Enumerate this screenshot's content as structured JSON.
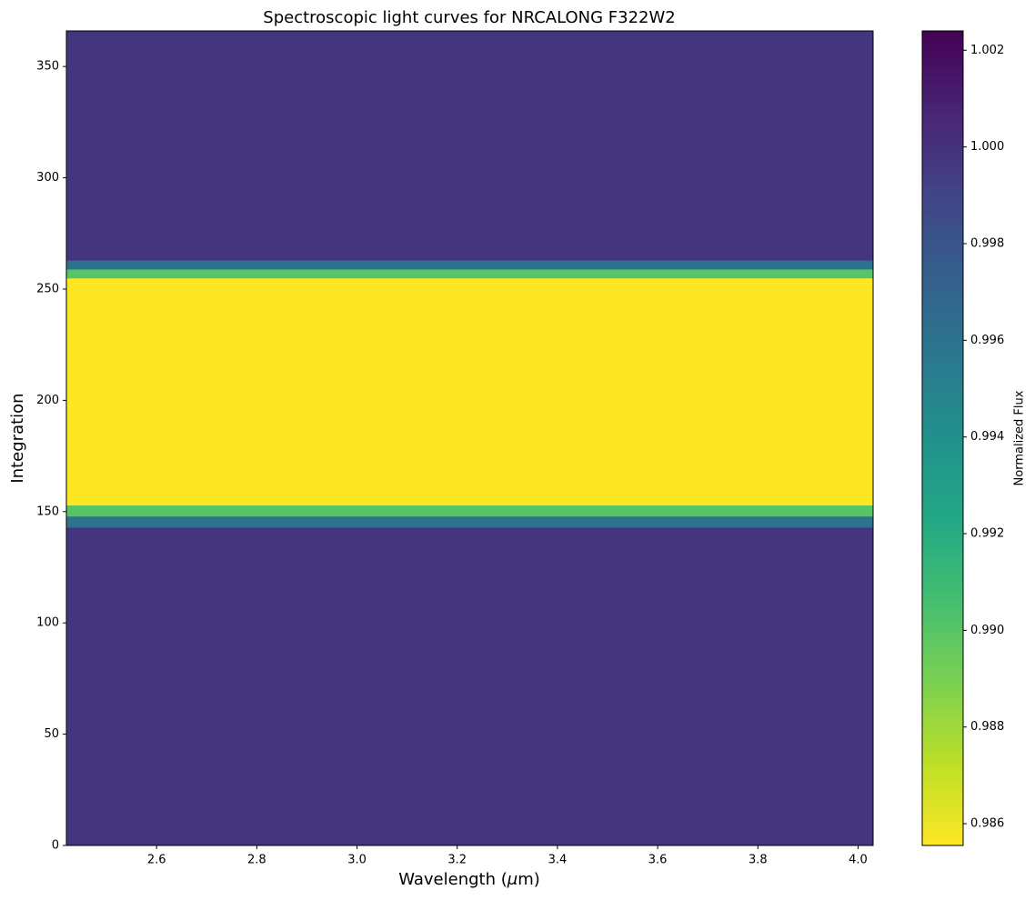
{
  "chart_data": {
    "type": "heatmap",
    "title": "Spectroscopic light curves for NRCALONG F322W2",
    "x_label": "Wavelength ($\\mu$m)",
    "y_label": "Integration",
    "colorbar_label": "Normalized Flux",
    "cmap": "viridis_r",
    "xlim": [
      2.42,
      4.03
    ],
    "ylim": [
      0,
      366
    ],
    "xticks": [
      2.6,
      2.8,
      {
        "value": 3,
        "label": "3.0"
      },
      3.2,
      3.4,
      3.6,
      3.8,
      {
        "value": 4,
        "label": "4.0"
      }
    ],
    "yticks": [
      0,
      50,
      100,
      150,
      200,
      250,
      300,
      350
    ],
    "y_bins": [
      0,
      143,
      148,
      153,
      255,
      259,
      263,
      366
    ],
    "values": [
      0.9998,
      0.996,
      0.99,
      0.9855,
      0.99,
      0.996,
      0.9998
    ],
    "clim": [
      0.98555,
      1.0024
    ],
    "cticks": [
      0.986,
      0.988,
      {
        "value": 0.99,
        "label": "0.990"
      },
      0.992,
      0.994,
      0.996,
      0.998,
      {
        "value": 1,
        "label": "1.000"
      },
      1.002
    ]
  }
}
